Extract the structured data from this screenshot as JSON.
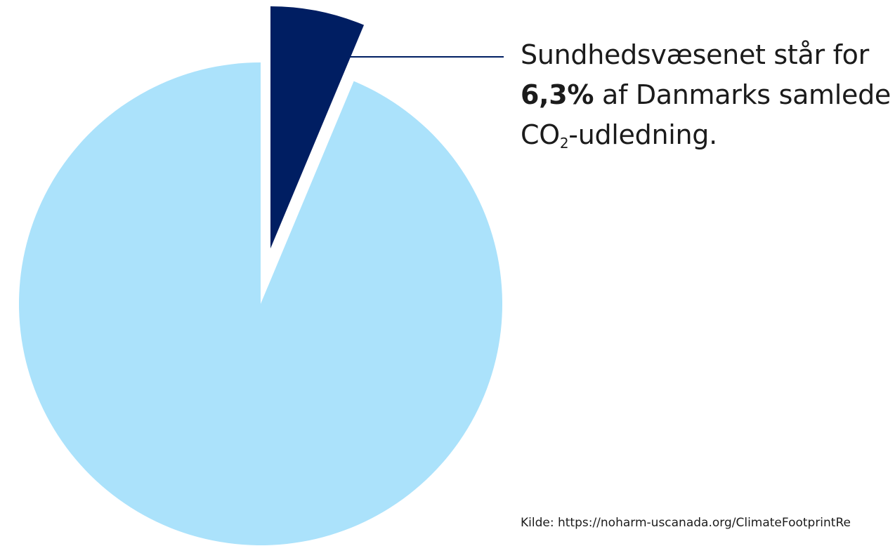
{
  "chart_data": {
    "type": "pie",
    "slices": [
      {
        "label": "Sundhedsvæsenet",
        "value": 6.3,
        "color": "#001e62",
        "exploded": true
      },
      {
        "label": "",
        "value": 93.7,
        "color": "#abe2fb",
        "exploded": false
      }
    ],
    "annotation": {
      "line1": "Sundhedsvæsenet står for",
      "value_text": "6,3%",
      "line2_rest": " af Danmarks samlede",
      "line3_prefix": "CO",
      "line3_sub": "2",
      "line3_suffix": "-udledning."
    },
    "source": "Kilde: https://noharm-uscanada.org/ClimateFootprintRe"
  }
}
